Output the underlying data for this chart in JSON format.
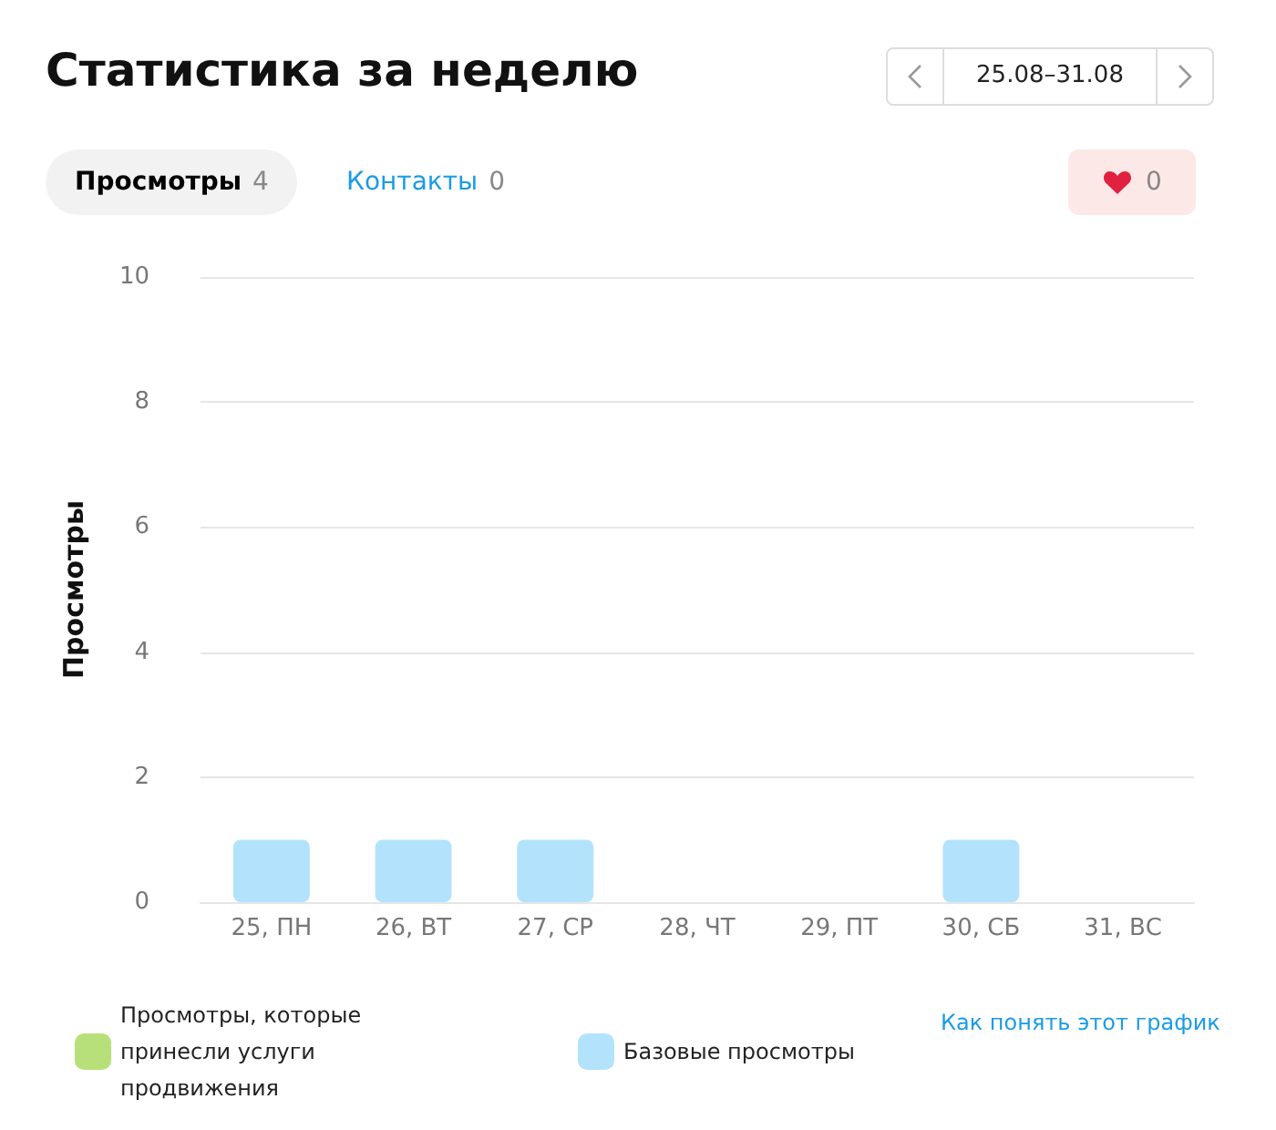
{
  "chart_data": {
    "type": "bar",
    "title": "Статистика за неделю",
    "ylabel": "Просмотры",
    "annotations": [
      "25.08–31.08",
      "Просмотры",
      "4",
      "Контакты",
      "0",
      "0",
      "Как понять этот график"
    ],
    "categories": [
      "25, ПН",
      "26, ВТ",
      "27, СР",
      "28, ЧТ",
      "29, ПТ",
      "30, СБ",
      "31, ВС"
    ],
    "stacked": true,
    "series": [
      {
        "name": "Просмотры, которые принесли услуги продвижения",
        "color": "#b8e07a",
        "values": [
          0,
          0,
          0,
          0,
          0,
          0,
          0
        ]
      },
      {
        "name": "Базовые просмотры",
        "color": "#b3e3fc",
        "values": [
          1,
          1,
          1,
          0,
          0,
          1,
          0
        ]
      }
    ],
    "ylim": [
      0,
      10
    ],
    "yticks": [
      0,
      2,
      4,
      6,
      8,
      10
    ],
    "grid": "y",
    "legend": "bottom"
  }
}
